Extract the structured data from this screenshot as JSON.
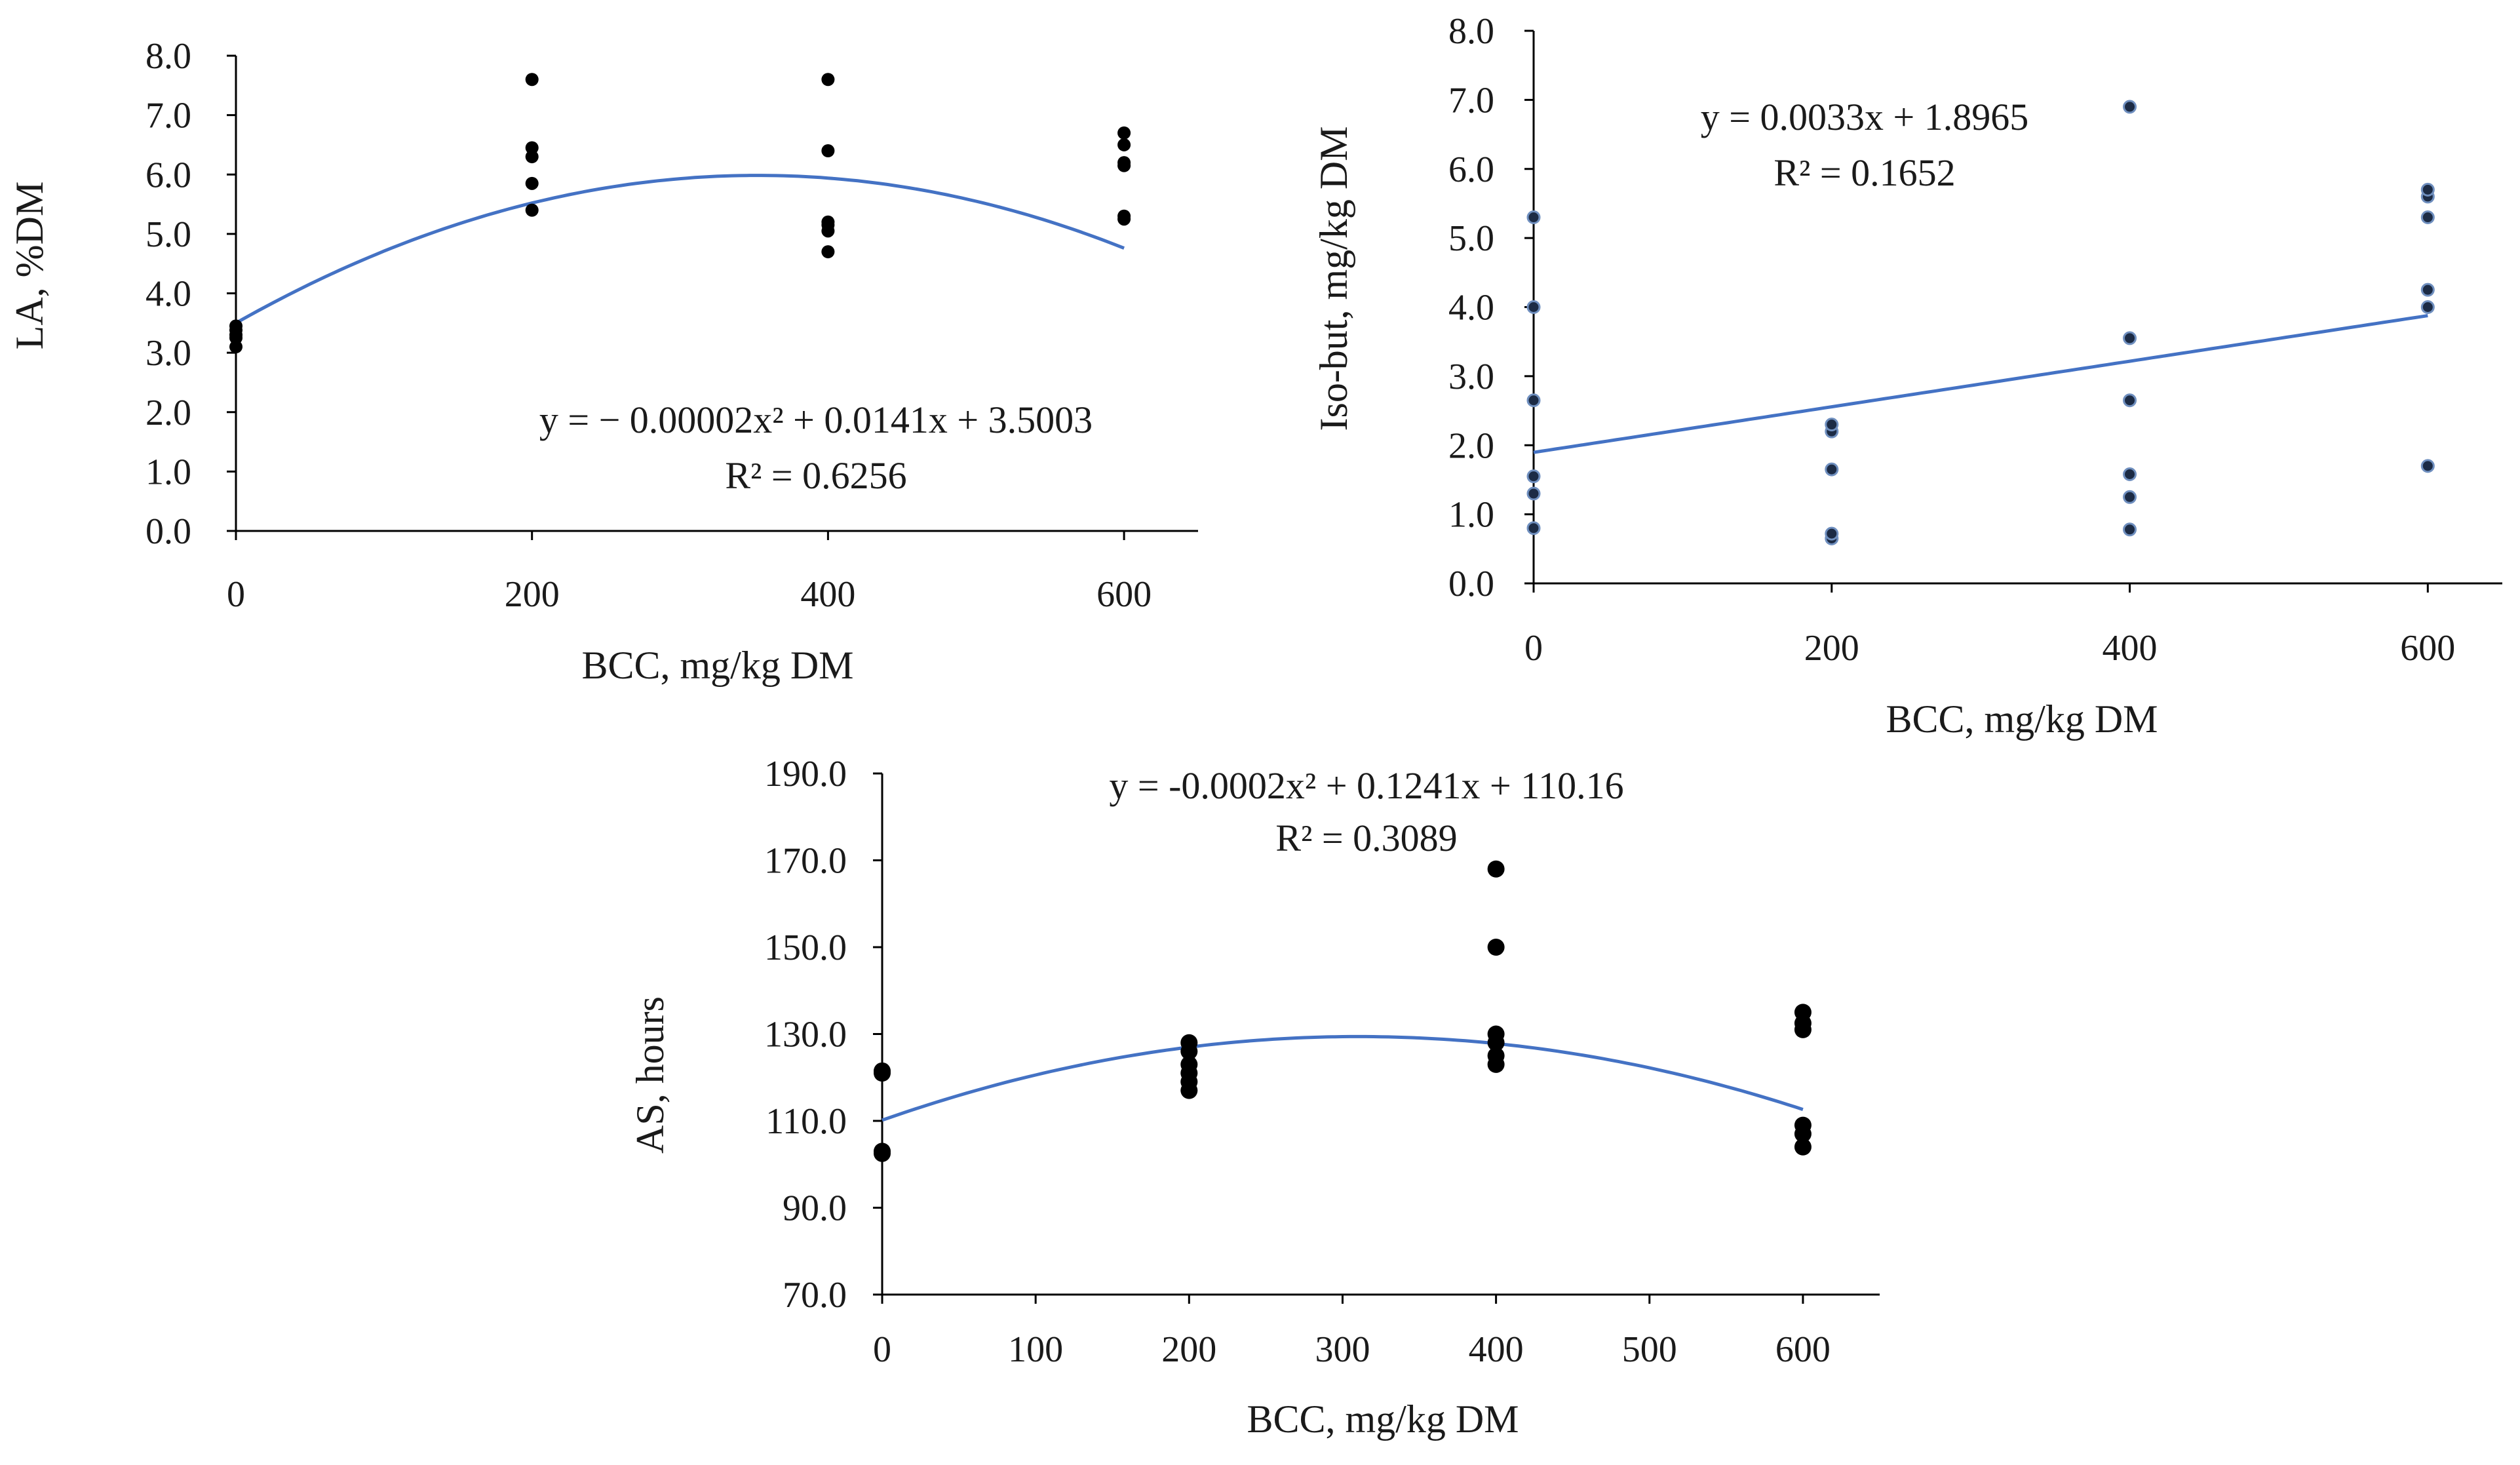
{
  "chart_data": [
    {
      "type": "scatter",
      "id": "la",
      "xlabel": "BCC, mg/kg DM",
      "ylabel": "LA, %DM",
      "xlim": [
        0,
        650
      ],
      "ylim": [
        0,
        8
      ],
      "xticks": [
        0,
        200,
        400,
        600
      ],
      "xtick_labels": [
        "0",
        "200",
        "400",
        "600"
      ],
      "yticks": [
        0,
        1,
        2,
        3,
        4,
        5,
        6,
        7,
        8
      ],
      "ytick_labels": [
        "0.0",
        "1.0",
        "2.0",
        "3.0",
        "4.0",
        "5.0",
        "6.0",
        "7.0",
        "8.0"
      ],
      "points": [
        [
          0,
          3.1
        ],
        [
          0,
          3.25
        ],
        [
          0,
          3.3
        ],
        [
          0,
          3.38
        ],
        [
          0,
          3.45
        ],
        [
          200,
          5.4
        ],
        [
          200,
          5.85
        ],
        [
          200,
          6.3
        ],
        [
          200,
          6.45
        ],
        [
          200,
          7.6
        ],
        [
          400,
          4.7
        ],
        [
          400,
          5.05
        ],
        [
          400,
          5.15
        ],
        [
          400,
          5.2
        ],
        [
          400,
          6.4
        ],
        [
          400,
          7.6
        ],
        [
          600,
          5.25
        ],
        [
          600,
          5.3
        ],
        [
          600,
          6.15
        ],
        [
          600,
          6.2
        ],
        [
          600,
          6.5
        ],
        [
          600,
          6.7
        ]
      ],
      "trendline": {
        "kind": "poly2",
        "a": -2e-05,
        "b": 0.0141,
        "c": 3.5003,
        "xmax": 600,
        "color": "#4472c4"
      },
      "equation": "y = − 0.00002x² + 0.0141x + 3.5003",
      "r2": "R² = 0.6256"
    },
    {
      "type": "scatter",
      "id": "isobut",
      "xlabel": "BCC, mg/kg DM",
      "ylabel": "Iso-but, mg/kg DM",
      "xlim": [
        0,
        650
      ],
      "ylim": [
        0,
        8
      ],
      "xticks": [
        0,
        200,
        400,
        600
      ],
      "xtick_labels": [
        "0",
        "200",
        "400",
        "600"
      ],
      "yticks": [
        0,
        1,
        2,
        3,
        4,
        5,
        6,
        7,
        8
      ],
      "ytick_labels": [
        "0.0",
        "1.0",
        "2.0",
        "3.0",
        "4.0",
        "5.0",
        "6.0",
        "7.0",
        "8.0"
      ],
      "points": [
        [
          0,
          0.8
        ],
        [
          0,
          1.3
        ],
        [
          0,
          1.55
        ],
        [
          0,
          2.65
        ],
        [
          0,
          4.0
        ],
        [
          0,
          5.3
        ],
        [
          200,
          0.65
        ],
        [
          200,
          0.72
        ],
        [
          200,
          1.65
        ],
        [
          200,
          2.2
        ],
        [
          200,
          2.3
        ],
        [
          400,
          0.78
        ],
        [
          400,
          1.25
        ],
        [
          400,
          1.58
        ],
        [
          400,
          2.65
        ],
        [
          400,
          3.55
        ],
        [
          400,
          6.9
        ],
        [
          600,
          1.7
        ],
        [
          600,
          4.0
        ],
        [
          600,
          4.25
        ],
        [
          600,
          5.3
        ],
        [
          600,
          5.6
        ],
        [
          600,
          5.7
        ]
      ],
      "trendline": {
        "kind": "linear",
        "a": 0,
        "b": 0.0033,
        "c": 1.8965,
        "xmax": 600,
        "color": "#4472c4"
      },
      "equation": "y = 0.0033x + 1.8965",
      "r2": "R² = 0.1652"
    },
    {
      "type": "scatter",
      "id": "as",
      "xlabel": "BCC, mg/kg DM",
      "ylabel": "AS, hours",
      "xlim": [
        0,
        650
      ],
      "ylim": [
        70,
        190
      ],
      "xticks": [
        0,
        100,
        200,
        300,
        400,
        500,
        600
      ],
      "xtick_labels": [
        "0",
        "100",
        "200",
        "300",
        "400",
        "500",
        "600"
      ],
      "yticks": [
        70,
        90,
        110,
        130,
        150,
        170,
        190
      ],
      "ytick_labels": [
        "70.0",
        "90.0",
        "110.0",
        "130.0",
        "150.0",
        "170.0",
        "190.0"
      ],
      "points": [
        [
          0,
          102.5
        ],
        [
          0,
          103
        ],
        [
          0,
          121
        ],
        [
          0,
          121.5
        ],
        [
          200,
          117
        ],
        [
          200,
          119
        ],
        [
          200,
          121
        ],
        [
          200,
          123
        ],
        [
          200,
          126
        ],
        [
          200,
          128
        ],
        [
          400,
          123
        ],
        [
          400,
          125
        ],
        [
          400,
          128
        ],
        [
          400,
          130
        ],
        [
          400,
          150
        ],
        [
          400,
          168
        ],
        [
          600,
          104
        ],
        [
          600,
          107
        ],
        [
          600,
          109
        ],
        [
          600,
          131
        ],
        [
          600,
          132.5
        ],
        [
          600,
          135
        ]
      ],
      "trendline": {
        "kind": "poly2",
        "a": -0.0002,
        "b": 0.1241,
        "c": 110.16,
        "xmax": 600,
        "color": "#4472c4"
      },
      "equation": "y = -0.0002x² + 0.1241x + 110.16",
      "r2": "R² = 0.3089"
    }
  ]
}
